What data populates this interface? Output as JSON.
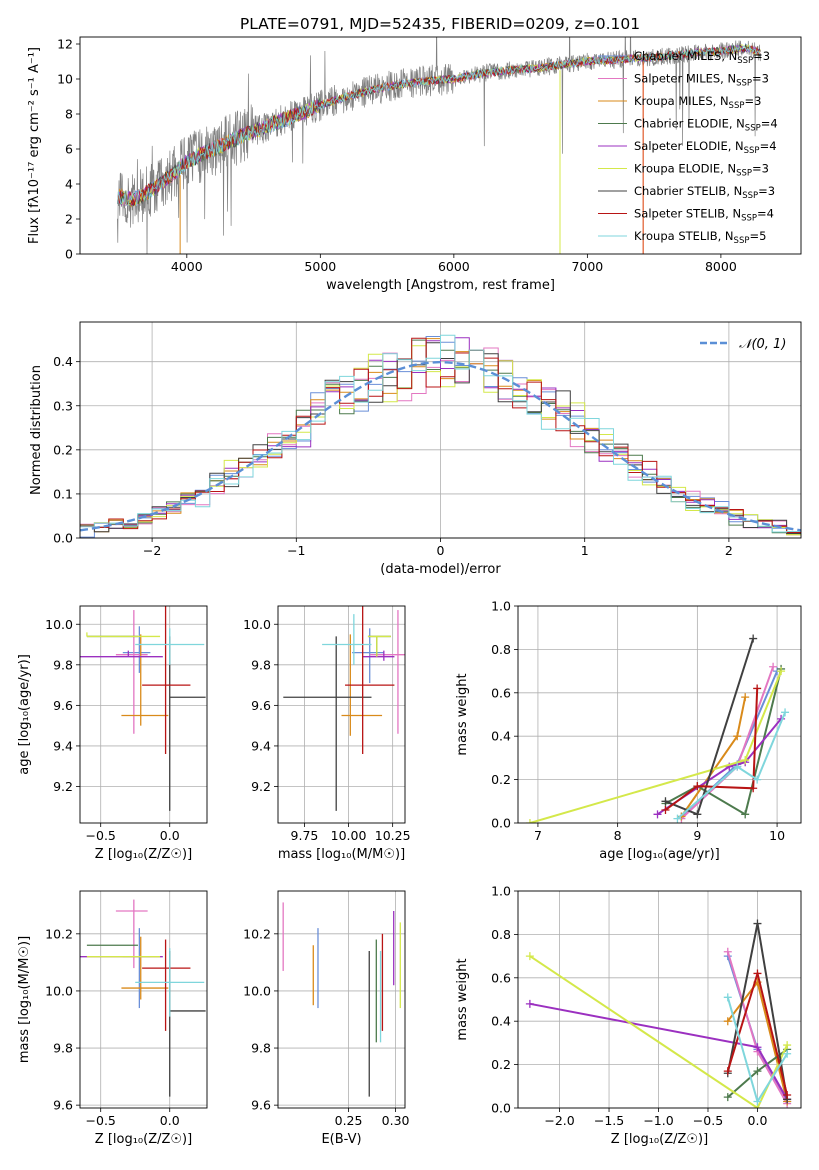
{
  "figure_title": "PLATE=0791, MJD=52435, FIBERID=0209, z=0.101",
  "colors": [
    "#6a8fd8",
    "#e377c2",
    "#d98a1a",
    "#4d7a4d",
    "#9b30c0",
    "#d4e84a",
    "#404040",
    "#b81414",
    "#7fd6dc"
  ],
  "chart_data": [
    {
      "id": "spectrum",
      "type": "line",
      "xlabel": "wavelength [Angstrom, rest frame]",
      "ylabel": "Flux [fλ10⁻¹⁷ erg cm⁻² s⁻¹ A⁻¹]",
      "xlim": [
        3200,
        8600
      ],
      "ylim": [
        0,
        12.4
      ],
      "xticks": [
        4000,
        5000,
        6000,
        7000,
        8000
      ],
      "yticks": [
        0,
        2,
        4,
        6,
        8,
        10,
        12
      ],
      "grid": false,
      "legend_position": "top-right",
      "data_series": {
        "name": "",
        "color": "#808080",
        "x": [
          3480,
          3600,
          3700,
          3800,
          3900,
          4000,
          4200,
          4400,
          4600,
          4800,
          5000,
          5200,
          5400,
          5600,
          5800,
          6000,
          6200,
          6400,
          6600,
          6800,
          7000,
          7200,
          7400,
          7600,
          7800,
          8000,
          8200,
          8300
        ],
        "y": [
          3.3,
          3.0,
          3.5,
          4.0,
          4.6,
          5.3,
          6.0,
          6.7,
          7.3,
          7.9,
          8.5,
          9.0,
          9.4,
          9.7,
          9.9,
          10.0,
          10.3,
          10.5,
          10.6,
          10.8,
          11.0,
          11.1,
          11.2,
          11.3,
          11.5,
          11.6,
          11.8,
          11.5
        ]
      },
      "series": [
        {
          "name": "Chabrier MILES, N_SSP=3"
        },
        {
          "name": "Salpeter MILES, N_SSP=3"
        },
        {
          "name": "Kroupa MILES, N_SSP=3"
        },
        {
          "name": "Chabrier ELODIE, N_SSP=4"
        },
        {
          "name": "Salpeter ELODIE, N_SSP=4"
        },
        {
          "name": "Kroupa ELODIE, N_SSP=3"
        },
        {
          "name": "Chabrier STELIB, N_SSP=3"
        },
        {
          "name": "Salpeter STELIB, N_SSP=4"
        },
        {
          "name": "Kroupa STELIB, N_SSP=5"
        }
      ],
      "model_curve": {
        "x": [
          3480,
          3600,
          3700,
          3800,
          3900,
          4000,
          4200,
          4400,
          4600,
          4800,
          5000,
          5200,
          5400,
          5600,
          5800,
          6000,
          6200,
          6400,
          6600,
          6800,
          7000,
          7200,
          7400,
          7600,
          7800,
          8000,
          8200,
          8300
        ],
        "y": [
          3.3,
          3.1,
          3.5,
          4.0,
          4.6,
          5.3,
          6.0,
          6.7,
          7.3,
          7.9,
          8.5,
          9.0,
          9.4,
          9.7,
          9.9,
          10.0,
          10.3,
          10.5,
          10.6,
          10.8,
          11.0,
          11.1,
          11.2,
          11.3,
          11.5,
          11.6,
          11.8,
          11.5
        ]
      }
    },
    {
      "id": "residuals",
      "type": "histogram",
      "xlabel": "(data-model)/error",
      "ylabel": "Normed distribution",
      "xlim": [
        -2.5,
        2.5
      ],
      "ylim": [
        0,
        0.49
      ],
      "xticks": [
        -2,
        -1,
        0,
        1,
        2
      ],
      "yticks": [
        0.0,
        0.1,
        0.2,
        0.3,
        0.4
      ],
      "grid": true,
      "legend_position": "top-right",
      "gaussian_label": "𝒩(0, 1)",
      "bin_width": 0.1
    },
    {
      "id": "age_vs_Z",
      "type": "scatter",
      "xlabel": "Z [log₁₀(Z/Z☉)]",
      "ylabel": "age  [log₁₀(age/yr)]",
      "xlim": [
        -0.65,
        0.27
      ],
      "ylim": [
        9.02,
        10.09
      ],
      "xticks": [
        -0.5,
        0.0
      ],
      "yticks": [
        9.2,
        9.4,
        9.6,
        9.8,
        10.0
      ],
      "grid": true,
      "points": [
        {
          "x": -0.22,
          "xerr": [
            0.12,
            0.08
          ],
          "y": 9.86,
          "yerr": [
            0.1,
            0.13
          ]
        },
        {
          "x": -0.26,
          "xerr": [
            0.13,
            0.1
          ],
          "y": 9.85,
          "yerr": [
            0.39,
            0.22
          ]
        },
        {
          "x": -0.21,
          "xerr": [
            0.14,
            0.2
          ],
          "y": 9.55,
          "yerr": [
            0.05,
            0.4
          ]
        },
        {
          "x": -0.6,
          "xerr": [
            0.0,
            0.37
          ],
          "y": 9.94,
          "yerr": [
            0.0,
            0.0
          ]
        },
        {
          "x": -0.3,
          "xerr": [
            0.52,
            0.25
          ],
          "y": 9.84,
          "yerr": [
            0.0,
            0.03
          ]
        },
        {
          "x": -0.6,
          "xerr": [
            0.0,
            0.53
          ],
          "y": 9.94,
          "yerr": [
            0.0,
            0.02
          ]
        },
        {
          "x": 0.0,
          "xerr": [
            0.0,
            0.26
          ],
          "y": 9.64,
          "yerr": [
            0.56,
            0.3
          ]
        },
        {
          "x": -0.03,
          "xerr": [
            0.17,
            0.18
          ],
          "y": 9.7,
          "yerr": [
            0.34,
            0.4
          ]
        },
        {
          "x": 0.0,
          "xerr": [
            0.25,
            0.25
          ],
          "y": 9.9,
          "yerr": [
            0.1,
            0.08
          ]
        }
      ]
    },
    {
      "id": "age_vs_mass",
      "type": "scatter",
      "xlabel": "mass [log₁₀(M/M☉)]",
      "ylabel": "",
      "xlim": [
        9.6,
        10.32
      ],
      "ylim": [
        9.02,
        10.09
      ],
      "xticks": [
        9.75,
        10.0,
        10.25
      ],
      "yticks": [
        9.2,
        9.4,
        9.6,
        9.8,
        10.0
      ],
      "grid": true,
      "points": [
        {
          "x": 10.12,
          "xerr": [
            0.1,
            0.08
          ],
          "y": 9.86,
          "yerr": [
            0.15,
            0.12
          ]
        },
        {
          "x": 10.28,
          "xerr": [
            0.16,
            0.07
          ],
          "y": 9.85,
          "yerr": [
            0.39,
            0.22
          ]
        },
        {
          "x": 10.01,
          "xerr": [
            0.05,
            0.18
          ],
          "y": 9.55,
          "yerr": [
            0.1,
            0.4
          ]
        },
        {
          "x": 10.16,
          "xerr": [
            0.05,
            0.08
          ],
          "y": 9.94,
          "yerr": [
            0.1,
            0.0
          ]
        },
        {
          "x": 10.2,
          "xerr": [
            0.12,
            0.06
          ],
          "y": 9.84,
          "yerr": [
            0.02,
            0.03
          ]
        },
        {
          "x": 10.16,
          "xerr": [
            0.05,
            0.08
          ],
          "y": 9.94,
          "yerr": [
            0.1,
            0.0
          ]
        },
        {
          "x": 9.93,
          "xerr": [
            0.3,
            0.2
          ],
          "y": 9.64,
          "yerr": [
            0.56,
            0.3
          ]
        },
        {
          "x": 10.08,
          "xerr": [
            0.1,
            0.18
          ],
          "y": 9.7,
          "yerr": [
            0.34,
            0.4
          ]
        },
        {
          "x": 10.03,
          "xerr": [
            0.18,
            0.1
          ],
          "y": 9.9,
          "yerr": [
            0.1,
            0.15
          ]
        }
      ]
    },
    {
      "id": "massweight_vs_age",
      "type": "line",
      "xlabel": "age  [log₁₀(age/yr)]",
      "ylabel": "mass weight",
      "xlim": [
        6.75,
        10.3
      ],
      "ylim": [
        0,
        1.0
      ],
      "xticks": [
        7,
        8,
        9,
        10
      ],
      "yticks": [
        0.0,
        0.2,
        0.4,
        0.6,
        0.8,
        1.0
      ],
      "grid": true,
      "series": [
        {
          "x": [
            8.8,
            9.5,
            10.0
          ],
          "y": [
            0.03,
            0.27,
            0.7
          ]
        },
        {
          "x": [
            8.8,
            9.5,
            9.95
          ],
          "y": [
            0.02,
            0.26,
            0.72
          ]
        },
        {
          "x": [
            8.8,
            9.5,
            9.6
          ],
          "y": [
            0.03,
            0.4,
            0.58
          ]
        },
        {
          "x": [
            8.6,
            9.0,
            9.6,
            10.05
          ],
          "y": [
            0.09,
            0.17,
            0.04,
            0.71
          ]
        },
        {
          "x": [
            8.5,
            9.4,
            9.6,
            10.05
          ],
          "y": [
            0.04,
            0.26,
            0.28,
            0.48
          ]
        },
        {
          "x": [
            6.9,
            9.6,
            10.05
          ],
          "y": [
            0.0,
            0.29,
            0.7
          ]
        },
        {
          "x": [
            8.6,
            9.0,
            9.7
          ],
          "y": [
            0.1,
            0.04,
            0.85
          ]
        },
        {
          "x": [
            8.6,
            9.0,
            9.7,
            9.75
          ],
          "y": [
            0.06,
            0.17,
            0.16,
            0.62
          ]
        },
        {
          "x": [
            8.75,
            9.5,
            9.75,
            10.1
          ],
          "y": [
            0.02,
            0.26,
            0.2,
            0.51
          ]
        }
      ]
    },
    {
      "id": "mass_vs_Z",
      "type": "scatter",
      "xlabel": "Z [log₁₀(Z/Z☉)]",
      "ylabel": "mass [log₁₀(M/M☉)]",
      "xlim": [
        -0.65,
        0.27
      ],
      "ylim": [
        9.59,
        10.35
      ],
      "xticks": [
        -0.5,
        0.0
      ],
      "yticks": [
        9.6,
        9.8,
        10.0,
        10.2
      ],
      "grid": true,
      "points": [
        {
          "x": -0.22,
          "xerr": [
            0.12,
            0.08
          ],
          "y": 10.12,
          "yerr": [
            0.18,
            0.1
          ]
        },
        {
          "x": -0.26,
          "xerr": [
            0.13,
            0.1
          ],
          "y": 10.28,
          "yerr": [
            0.2,
            0.04
          ]
        },
        {
          "x": -0.21,
          "xerr": [
            0.14,
            0.2
          ],
          "y": 10.01,
          "yerr": [
            0.04,
            0.18
          ]
        },
        {
          "x": -0.6,
          "xerr": [
            0.0,
            0.37
          ],
          "y": 10.16,
          "yerr": [
            0.0,
            0.0
          ]
        },
        {
          "x": -0.3,
          "xerr": [
            0.52,
            0.25
          ],
          "y": 10.12,
          "yerr": [
            0.0,
            0.0
          ]
        },
        {
          "x": -0.6,
          "xerr": [
            0.0,
            0.53
          ],
          "y": 10.12,
          "yerr": [
            0.0,
            0.0
          ]
        },
        {
          "x": 0.0,
          "xerr": [
            0.0,
            0.26
          ],
          "y": 9.93,
          "yerr": [
            0.3,
            0.21
          ]
        },
        {
          "x": -0.03,
          "xerr": [
            0.17,
            0.18
          ],
          "y": 10.08,
          "yerr": [
            0.22,
            0.1
          ]
        },
        {
          "x": 0.0,
          "xerr": [
            0.25,
            0.25
          ],
          "y": 10.03,
          "yerr": [
            0.12,
            0.12
          ]
        }
      ]
    },
    {
      "id": "mass_vs_EBV",
      "type": "scatter",
      "xlabel": "E(B-V)",
      "ylabel": "",
      "xlim": [
        0.175,
        0.31
      ],
      "ylim": [
        9.59,
        10.35
      ],
      "xticks": [
        0.25,
        0.3
      ],
      "yticks": [
        9.6,
        9.8,
        10.0,
        10.2
      ],
      "grid": true,
      "points": [
        {
          "x": 0.2175,
          "y": 10.1,
          "yerr": [
            0.16,
            0.12
          ]
        },
        {
          "x": 0.1805,
          "y": 10.2,
          "yerr": [
            0.13,
            0.11
          ]
        },
        {
          "x": 0.2125,
          "y": 10.06,
          "yerr": [
            0.11,
            0.1
          ]
        },
        {
          "x": 0.2795,
          "y": 10.0,
          "yerr": [
            0.18,
            0.18
          ]
        },
        {
          "x": 0.298,
          "y": 10.15,
          "yerr": [
            0.13,
            0.13
          ]
        },
        {
          "x": 0.305,
          "y": 10.1,
          "yerr": [
            0.16,
            0.14
          ]
        },
        {
          "x": 0.272,
          "y": 9.89,
          "yerr": [
            0.26,
            0.25
          ]
        },
        {
          "x": 0.286,
          "y": 10.03,
          "yerr": [
            0.17,
            0.17
          ]
        },
        {
          "x": 0.284,
          "y": 9.98,
          "yerr": [
            0.16,
            0.16
          ]
        }
      ]
    },
    {
      "id": "massweight_vs_Z",
      "type": "line",
      "xlabel": "Z [log₁₀(Z/Z☉)]",
      "ylabel": "mass weight",
      "xlim": [
        -2.42,
        0.44
      ],
      "ylim": [
        0,
        1.0
      ],
      "xticks": [
        -2.0,
        -1.5,
        -1.0,
        -0.5,
        0.0
      ],
      "yticks": [
        0.0,
        0.2,
        0.4,
        0.6,
        0.8,
        1.0
      ],
      "grid": true,
      "series": [
        {
          "x": [
            -0.3,
            0.0,
            0.3
          ],
          "y": [
            0.7,
            0.27,
            0.03
          ]
        },
        {
          "x": [
            -0.3,
            0.0,
            0.3
          ],
          "y": [
            0.72,
            0.26,
            0.02
          ]
        },
        {
          "x": [
            -0.3,
            0.0,
            0.3
          ],
          "y": [
            0.4,
            0.58,
            0.03
          ]
        },
        {
          "x": [
            -0.3,
            0.0,
            0.3
          ],
          "y": [
            0.05,
            0.17,
            0.27
          ]
        },
        {
          "x": [
            -2.3,
            0.0,
            0.3
          ],
          "y": [
            0.48,
            0.28,
            0.04
          ]
        },
        {
          "x": [
            -2.3,
            0.0,
            0.3
          ],
          "y": [
            0.7,
            0.0,
            0.29
          ]
        },
        {
          "x": [
            -0.3,
            0.0,
            0.3
          ],
          "y": [
            0.16,
            0.85,
            0.04
          ]
        },
        {
          "x": [
            -0.3,
            0.0,
            0.3
          ],
          "y": [
            0.17,
            0.62,
            0.06
          ]
        },
        {
          "x": [
            -0.3,
            0.0,
            0.3
          ],
          "y": [
            0.51,
            0.03,
            0.25
          ]
        }
      ]
    }
  ]
}
